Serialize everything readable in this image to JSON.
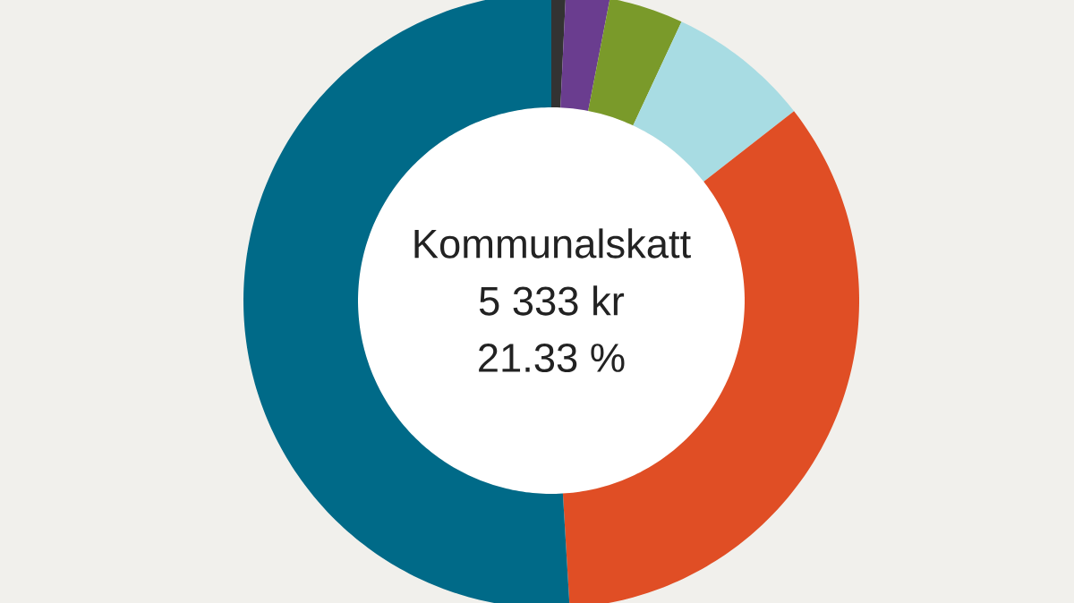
{
  "chart_data": {
    "type": "donut",
    "categories": [
      null,
      null,
      null,
      null,
      null,
      null
    ],
    "values": [
      0.75,
      2.3,
      3.9,
      7.5,
      34.6,
      50.95
    ],
    "colors": [
      "#333333",
      "#6a3d8f",
      "#7a9a2a",
      "#a8dce3",
      "#e04e25",
      "#006a88"
    ],
    "annotations": [
      "Kommunalskatt",
      "5 333 kr",
      "21.33 %"
    ]
  }
}
